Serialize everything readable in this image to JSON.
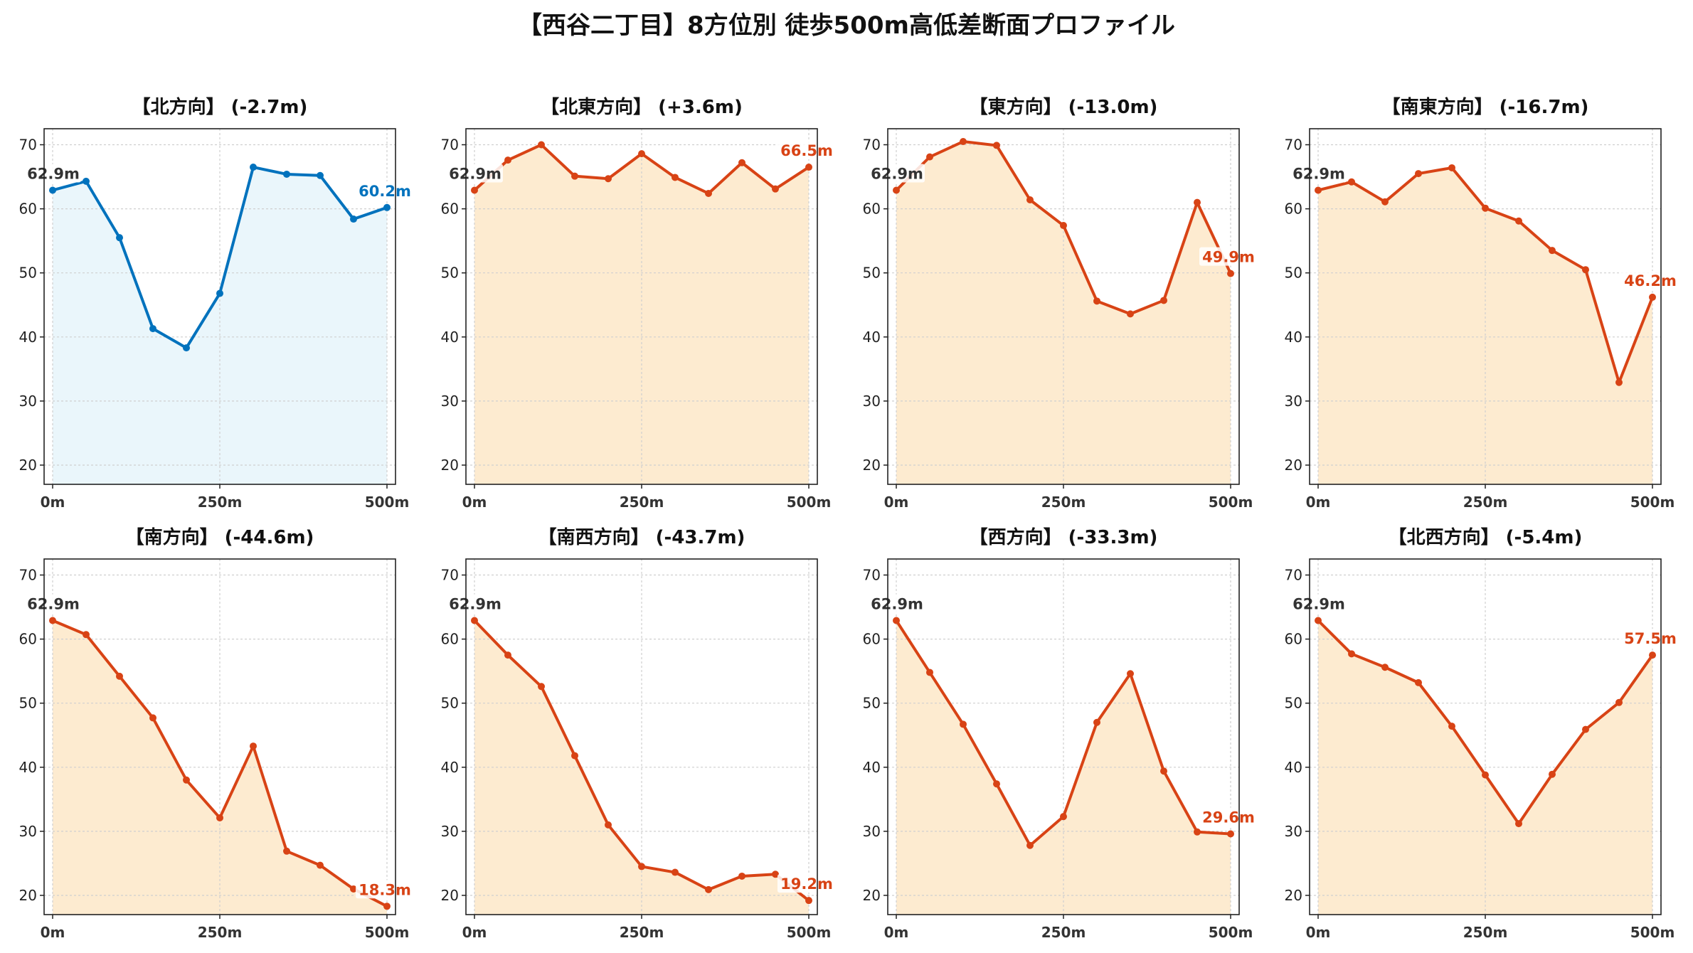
{
  "title": "【西谷二丁目】8方位別 徒歩500m高低差断面プロファイル",
  "colors": {
    "up_line": "#0072BD",
    "up_fill": "#EAF6FB",
    "down_line": "#D84315",
    "down_fill": "#FDEBD0",
    "start_label": "#333333",
    "grid": "#cfcfcf"
  },
  "chart_data": [
    {
      "type": "area",
      "title": "【北方向】 (-2.7m)",
      "trend": "up",
      "x": [
        0,
        50,
        100,
        150,
        200,
        250,
        300,
        350,
        400,
        450,
        500
      ],
      "values": [
        62.9,
        64.3,
        55.5,
        41.3,
        38.3,
        46.8,
        66.5,
        65.4,
        65.2,
        58.4,
        60.2
      ],
      "start_label": "62.9m",
      "end_label": "60.2m",
      "xticks": [
        "0m",
        "250m",
        "500m"
      ],
      "yticks": [
        20,
        30,
        40,
        50,
        60,
        70
      ],
      "ylim": [
        17,
        72.5
      ],
      "xlim": [
        0,
        500
      ],
      "grid": true
    },
    {
      "type": "area",
      "title": "【北東方向】 (+3.6m)",
      "trend": "down",
      "x": [
        0,
        50,
        100,
        150,
        200,
        250,
        300,
        350,
        400,
        450,
        500
      ],
      "values": [
        62.9,
        67.6,
        70.0,
        65.1,
        64.7,
        68.6,
        64.9,
        62.4,
        67.2,
        63.1,
        66.5
      ],
      "start_label": "62.9m",
      "end_label": "66.5m",
      "xticks": [
        "0m",
        "250m",
        "500m"
      ],
      "yticks": [
        20,
        30,
        40,
        50,
        60,
        70
      ],
      "ylim": [
        17,
        72.5
      ],
      "xlim": [
        0,
        500
      ],
      "grid": true
    },
    {
      "type": "area",
      "title": "【東方向】 (-13.0m)",
      "trend": "down",
      "x": [
        0,
        50,
        100,
        150,
        200,
        250,
        300,
        350,
        400,
        450,
        500
      ],
      "values": [
        62.9,
        68.1,
        70.5,
        69.9,
        61.4,
        57.4,
        45.6,
        43.6,
        45.7,
        61.0,
        49.9
      ],
      "start_label": "62.9m",
      "end_label": "49.9m",
      "xticks": [
        "0m",
        "250m",
        "500m"
      ],
      "yticks": [
        20,
        30,
        40,
        50,
        60,
        70
      ],
      "ylim": [
        17,
        72.5
      ],
      "xlim": [
        0,
        500
      ],
      "grid": true
    },
    {
      "type": "area",
      "title": "【南東方向】 (-16.7m)",
      "trend": "down",
      "x": [
        0,
        50,
        100,
        150,
        200,
        250,
        300,
        350,
        400,
        450,
        500
      ],
      "values": [
        62.9,
        64.2,
        61.1,
        65.5,
        66.4,
        60.1,
        58.1,
        53.5,
        50.5,
        32.9,
        46.2
      ],
      "start_label": "62.9m",
      "end_label": "46.2m",
      "xticks": [
        "0m",
        "250m",
        "500m"
      ],
      "yticks": [
        20,
        30,
        40,
        50,
        60,
        70
      ],
      "ylim": [
        17,
        72.5
      ],
      "xlim": [
        0,
        500
      ],
      "grid": true
    },
    {
      "type": "area",
      "title": "【南方向】 (-44.6m)",
      "trend": "down",
      "x": [
        0,
        50,
        100,
        150,
        200,
        250,
        300,
        350,
        400,
        450,
        500
      ],
      "values": [
        62.9,
        60.7,
        54.2,
        47.7,
        38.0,
        32.1,
        43.3,
        26.9,
        24.7,
        21.0,
        18.3
      ],
      "start_label": "62.9m",
      "end_label": "18.3m",
      "xticks": [
        "0m",
        "250m",
        "500m"
      ],
      "yticks": [
        20,
        30,
        40,
        50,
        60,
        70
      ],
      "ylim": [
        17,
        72.5
      ],
      "xlim": [
        0,
        500
      ],
      "grid": true
    },
    {
      "type": "area",
      "title": "【南西方向】 (-43.7m)",
      "trend": "down",
      "x": [
        0,
        50,
        100,
        150,
        200,
        250,
        300,
        350,
        400,
        450,
        500
      ],
      "values": [
        62.9,
        57.5,
        52.6,
        41.8,
        31.0,
        24.5,
        23.6,
        20.9,
        23.0,
        23.3,
        19.2
      ],
      "start_label": "62.9m",
      "end_label": "19.2m",
      "xticks": [
        "0m",
        "250m",
        "500m"
      ],
      "yticks": [
        20,
        30,
        40,
        50,
        60,
        70
      ],
      "ylim": [
        17,
        72.5
      ],
      "xlim": [
        0,
        500
      ],
      "grid": true
    },
    {
      "type": "area",
      "title": "【西方向】 (-33.3m)",
      "trend": "down",
      "x": [
        0,
        50,
        100,
        150,
        200,
        250,
        300,
        350,
        400,
        450,
        500
      ],
      "values": [
        62.9,
        54.8,
        46.7,
        37.4,
        27.8,
        32.3,
        47.0,
        54.6,
        39.4,
        29.9,
        29.6
      ],
      "start_label": "62.9m",
      "end_label": "29.6m",
      "xticks": [
        "0m",
        "250m",
        "500m"
      ],
      "yticks": [
        20,
        30,
        40,
        50,
        60,
        70
      ],
      "ylim": [
        17,
        72.5
      ],
      "xlim": [
        0,
        500
      ],
      "grid": true
    },
    {
      "type": "area",
      "title": "【北西方向】 (-5.4m)",
      "trend": "down",
      "x": [
        0,
        50,
        100,
        150,
        200,
        250,
        300,
        350,
        400,
        450,
        500
      ],
      "values": [
        62.9,
        57.7,
        55.6,
        53.2,
        46.4,
        38.8,
        31.2,
        38.9,
        45.9,
        50.1,
        57.5
      ],
      "start_label": "62.9m",
      "end_label": "57.5m",
      "xticks": [
        "0m",
        "250m",
        "500m"
      ],
      "yticks": [
        20,
        30,
        40,
        50,
        60,
        70
      ],
      "ylim": [
        17,
        72.5
      ],
      "xlim": [
        0,
        500
      ],
      "grid": true
    }
  ]
}
